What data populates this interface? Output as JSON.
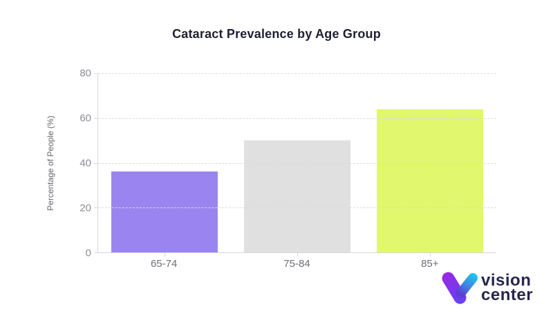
{
  "chart_data": {
    "type": "bar",
    "title": "Cataract Prevalence by Age Group",
    "categories": [
      "65-74",
      "75-84",
      "85+"
    ],
    "values": [
      36,
      50,
      64
    ],
    "xlabel": "",
    "ylabel": "Percentage of People (%)",
    "ylim": [
      0,
      80
    ],
    "yticks": [
      0,
      20,
      40,
      60,
      80
    ],
    "bar_colors": [
      "#9a85f0",
      "#e0e0e0",
      "#e1f76d"
    ],
    "grid": "horizontal dashed",
    "legend": "none"
  },
  "branding": {
    "logo_line1": "vision",
    "logo_line2": "center",
    "logo_text_color": "#26264d",
    "mark_violet_top": "#962ae3",
    "mark_indigo_bottom": "#6a3ef2",
    "mark_cyan": "#1fc0ed",
    "mark_blend": "#5c3fd6"
  },
  "style": {
    "background": "#ffffff",
    "title_color": "#1f1f33",
    "axis_color": "#d6d6de",
    "gridline_color": "#d9d9e3",
    "ytick_label_color": "#8b8b98",
    "xtick_label_color": "#6d6d76",
    "axis_title_color": "#66666e"
  }
}
